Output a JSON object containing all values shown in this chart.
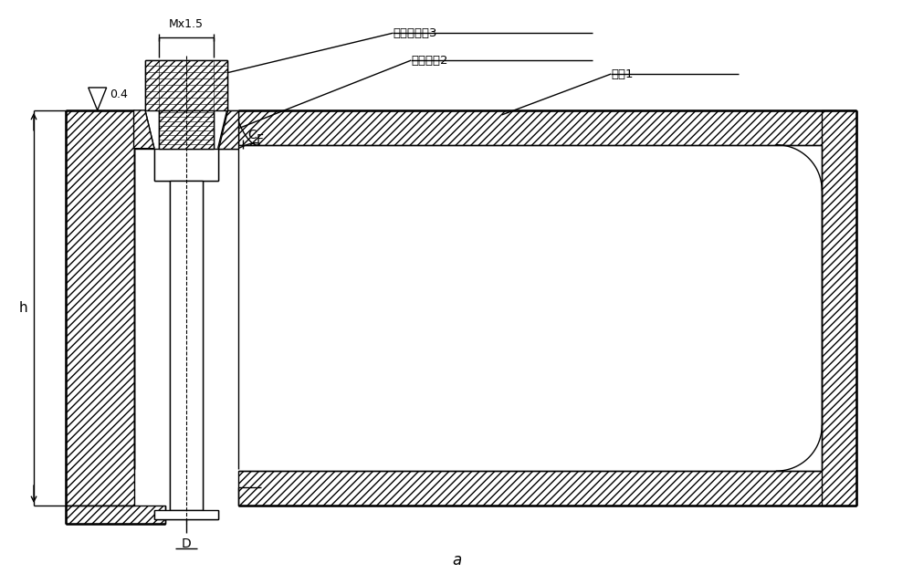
{
  "title": "a",
  "labels": {
    "thread_locator": "螺纹定位套3",
    "locator_sleeve": "定位衬套2",
    "bracket": "支架1",
    "C": "C",
    "F": "F",
    "D": "D",
    "h": "h",
    "dim_04": "0.4",
    "dim_mx15": "Mx1.5"
  },
  "line_color": "#000000",
  "bg_color": "#ffffff",
  "lw": 1.0,
  "thick_lw": 1.8
}
